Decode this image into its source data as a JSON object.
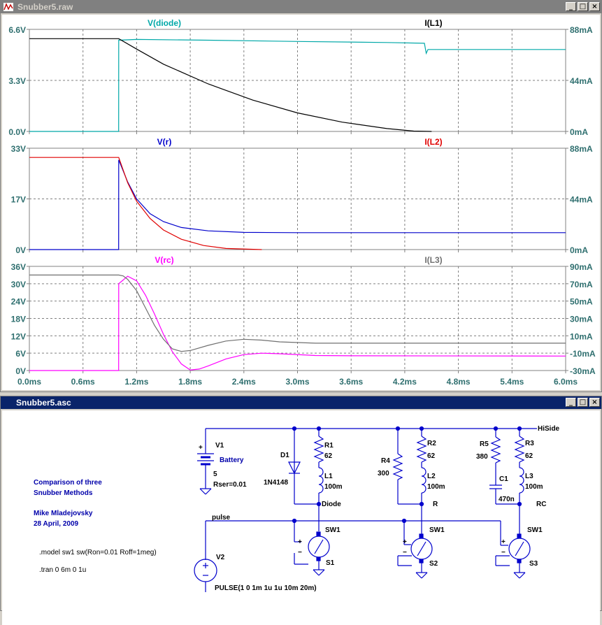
{
  "colors": {
    "axis_text": "#2f6f6f",
    "grid": "#808080",
    "diode": "#00a8a8",
    "black": "#000000",
    "red": "#e00000",
    "blue": "#0000cc",
    "magenta": "#ff00ff",
    "gray_trace": "#707070",
    "schematic_blue": "#0000cc",
    "label_blue": "#0000aa"
  },
  "waveform_window": {
    "title": "Snubber5.raw",
    "icon": "waveform-icon",
    "buttons": [
      "minimize",
      "maximize",
      "close"
    ]
  },
  "schematic_window": {
    "title": "Snubber5.asc",
    "buttons": [
      "minimize",
      "maximize",
      "close"
    ]
  },
  "chart_data": [
    {
      "type": "line",
      "xlabel": "",
      "ylabel": "",
      "yticks_left": [
        "6.6V",
        "3.3V",
        "0.0V"
      ],
      "yticks_right": [
        "88mA",
        "44mA",
        "0mA"
      ],
      "ylim_left": [
        0,
        6.6
      ],
      "ylim_right": [
        0,
        88
      ],
      "xlim": [
        0,
        6.0
      ],
      "grid": true,
      "series": [
        {
          "name": "V(diode)",
          "axis": "left",
          "color": "diode",
          "x": [
            0,
            0.999,
            1.0,
            1.2,
            2.0,
            3.0,
            4.0,
            4.42,
            4.44,
            4.46,
            4.5,
            6.0
          ],
          "y": [
            0,
            0,
            5.9,
            5.95,
            5.9,
            5.82,
            5.75,
            5.7,
            5.05,
            5.3,
            5.3,
            5.3
          ]
        },
        {
          "name": "I(L1)",
          "axis": "right",
          "color": "black",
          "x": [
            0,
            1.0,
            1.2,
            1.5,
            2.0,
            2.5,
            3.0,
            3.5,
            4.0,
            4.3,
            4.5
          ],
          "y": [
            80,
            80,
            71,
            58,
            41,
            27,
            16,
            8,
            2.5,
            0.3,
            0
          ]
        }
      ]
    },
    {
      "type": "line",
      "xlabel": "",
      "ylabel": "",
      "yticks_left": [
        "33V",
        "17V",
        "0V"
      ],
      "yticks_right": [
        "88mA",
        "44mA",
        "0mA"
      ],
      "ylim_left": [
        0,
        33
      ],
      "ylim_right": [
        0,
        88
      ],
      "xlim": [
        0,
        6.0
      ],
      "grid": true,
      "series": [
        {
          "name": "V(r)",
          "axis": "left",
          "color": "blue",
          "x": [
            0,
            0.999,
            1.0,
            1.1,
            1.2,
            1.35,
            1.5,
            1.7,
            2.0,
            2.4,
            3.0,
            6.0
          ],
          "y": [
            0,
            0,
            29.2,
            22,
            16.5,
            11.7,
            9.1,
            7.2,
            6.1,
            5.6,
            5.5,
            5.5
          ]
        },
        {
          "name": "I(L2)",
          "axis": "right",
          "color": "red",
          "x": [
            0,
            1.0,
            1.1,
            1.2,
            1.35,
            1.5,
            1.7,
            1.95,
            2.2,
            2.6
          ],
          "y": [
            80,
            80,
            58,
            42,
            27,
            17,
            9,
            3.5,
            1,
            0
          ]
        }
      ]
    },
    {
      "type": "line",
      "xlabel": "",
      "ylabel": "",
      "yticks_left": [
        "36V",
        "30V",
        "24V",
        "18V",
        "12V",
        "6V",
        "0V"
      ],
      "yticks_right": [
        "90mA",
        "70mA",
        "50mA",
        "30mA",
        "10mA",
        "-10mA",
        "-30mA"
      ],
      "xticks": [
        "0.0ms",
        "0.6ms",
        "1.2ms",
        "1.8ms",
        "2.4ms",
        "3.0ms",
        "3.6ms",
        "4.2ms",
        "4.8ms",
        "5.4ms",
        "6.0ms"
      ],
      "ylim_left": [
        0,
        36
      ],
      "ylim_right": [
        -30,
        90
      ],
      "xlim": [
        0,
        6.0
      ],
      "grid": true,
      "series": [
        {
          "name": "V(rc)",
          "axis": "left",
          "color": "magenta",
          "x": [
            0,
            0.999,
            1.0,
            1.05,
            1.1,
            1.2,
            1.3,
            1.4,
            1.5,
            1.6,
            1.7,
            1.8,
            1.9,
            2.0,
            2.2,
            2.4,
            2.6,
            2.8,
            3.2,
            3.6,
            6.0
          ],
          "y": [
            0,
            0,
            30,
            31.3,
            32.6,
            31,
            26,
            19.5,
            12.5,
            6.5,
            2.3,
            0.2,
            0.5,
            1.6,
            4.0,
            5.5,
            6.0,
            5.8,
            5.2,
            5.1,
            5.0
          ]
        },
        {
          "name": "I(L3)",
          "axis": "right",
          "color": "gray_trace",
          "x": [
            0,
            1.0,
            1.05,
            1.1,
            1.2,
            1.3,
            1.4,
            1.5,
            1.6,
            1.7,
            1.8,
            2.0,
            2.2,
            2.4,
            2.6,
            2.8,
            3.2,
            3.6,
            6.0
          ],
          "y": [
            80,
            80,
            79,
            75,
            62,
            42,
            22,
            6,
            -5,
            -8,
            -7,
            -1,
            4,
            6,
            5,
            3,
            1.5,
            1.5,
            1.5
          ]
        }
      ]
    }
  ],
  "schematic": {
    "title_lines": [
      "Comparison of three",
      "Snubber Methods"
    ],
    "author_lines": [
      "Mike Mladejovsky",
      "28 April, 2009"
    ],
    "directives": [
      ".model sw1 sw(Ron=0.01 Roff=1meg)",
      ".tran 0 6m 0 1u"
    ],
    "battery": {
      "name": "V1",
      "value_label": "Battery",
      "value": "5",
      "rser": "Rser=0.01",
      "plus": "+"
    },
    "source": {
      "name": "V2",
      "value": "PULSE(1 0 1m 1u 1u 10m 20m)",
      "plus": "+"
    },
    "net_pulse": "pulse",
    "net_hiside": "HiSide",
    "branch1": {
      "r_name": "R1",
      "r_value": "62",
      "l_name": "L1",
      "l_value": "100m",
      "d_name": "D1",
      "d_model": "1N4148",
      "node": "Diode",
      "sw_name": "SW1",
      "sw_inst": "S1"
    },
    "branch2": {
      "r_name": "R2",
      "r_value": "62",
      "l_name": "L2",
      "l_value": "100m",
      "rs_name": "R4",
      "rs_value": "300",
      "node": "R",
      "sw_name": "SW1",
      "sw_inst": "S2"
    },
    "branch3": {
      "r_name": "R3",
      "r_value": "62",
      "l_name": "L3",
      "l_value": "100m",
      "rs_name": "R5",
      "rs_value": "380",
      "c_name": "C1",
      "c_value": "470n",
      "node": "RC",
      "sw_name": "SW1",
      "sw_inst": "S3"
    },
    "sw_plus": "+",
    "sw_minus": "−"
  }
}
